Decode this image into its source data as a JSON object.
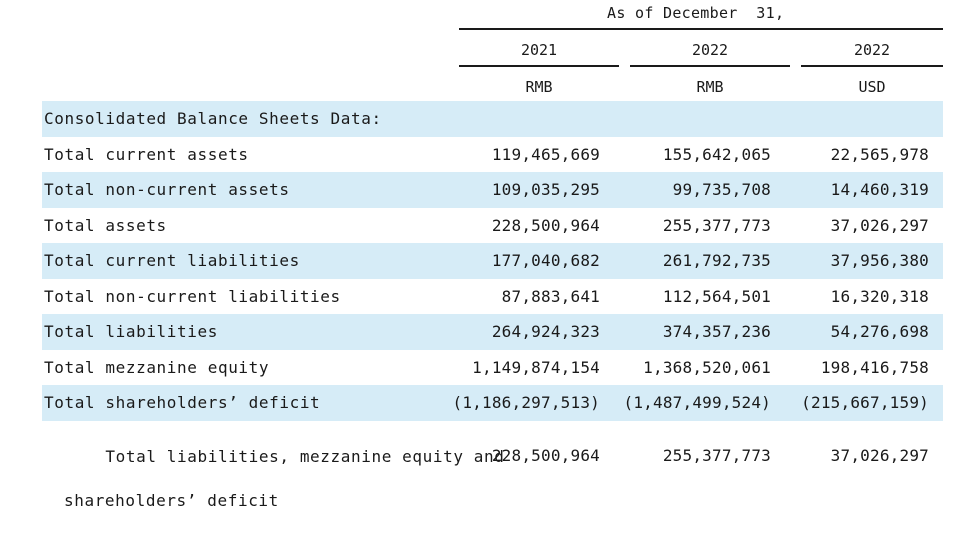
{
  "header": {
    "as_of": "As of December  31,",
    "columns": [
      {
        "year": "2021",
        "currency": "RMB"
      },
      {
        "year": "2022",
        "currency": "RMB"
      },
      {
        "year": "2022",
        "currency": "USD"
      }
    ]
  },
  "section_title": "Consolidated Balance Sheets Data:",
  "rows": [
    {
      "label": "Total current assets",
      "values": [
        "119,465,669",
        "155,642,065",
        "22,565,978"
      ]
    },
    {
      "label": "Total non-current assets",
      "values": [
        "109,035,295",
        "99,735,708",
        "14,460,319"
      ]
    },
    {
      "label": "Total assets",
      "values": [
        "228,500,964",
        "255,377,773",
        "37,026,297"
      ]
    },
    {
      "label": "Total current liabilities",
      "values": [
        "177,040,682",
        "261,792,735",
        "37,956,380"
      ]
    },
    {
      "label": "Total non-current liabilities",
      "values": [
        "87,883,641",
        "112,564,501",
        "16,320,318"
      ]
    },
    {
      "label": "Total liabilities",
      "values": [
        "264,924,323",
        "374,357,236",
        "54,276,698"
      ]
    },
    {
      "label": "Total mezzanine equity",
      "values": [
        "1,149,874,154",
        "1,368,520,061",
        "198,416,758"
      ]
    },
    {
      "label": "Total shareholders’ deficit",
      "values": [
        "(1,186,297,513)",
        "(1,487,499,524)",
        "(215,667,159)"
      ]
    },
    {
      "label_line1": "Total liabilities, mezzanine equity and",
      "label_line2": "shareholders’ deficit",
      "values": [
        "228,500,964",
        "255,377,773",
        "37,026,297"
      ]
    }
  ]
}
